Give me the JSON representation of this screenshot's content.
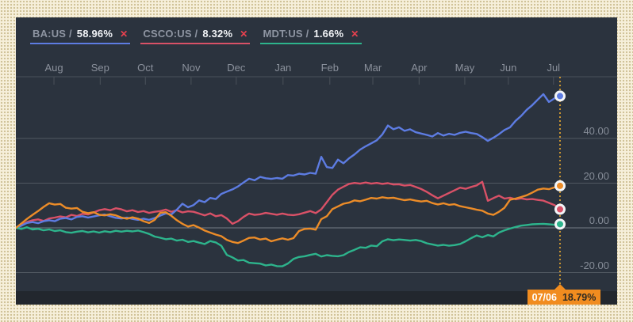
{
  "tooltip": {
    "date": "07/06",
    "value": "18.79%"
  },
  "legend": {
    "items": [
      {
        "id": "ba-us",
        "ticker": "BA:US /",
        "value": "58.96%",
        "close": "✕",
        "color": "#5d7ce2"
      },
      {
        "id": "csco-us",
        "ticker": "CSCO:US /",
        "value": "8.32%",
        "close": "✕",
        "color": "#d95167"
      },
      {
        "id": "mdt-us",
        "ticker": "MDT:US /",
        "value": "1.66%",
        "close": "✕",
        "color": "#2db48c"
      }
    ]
  },
  "colors": {
    "panel_bg": "#2b333e",
    "strip_bg": "#22272e",
    "grid": "#515861",
    "grid_zero": "#767c85",
    "axis": "#4a515a",
    "cursor": "#c79432",
    "dot_ring": "#f3f5f8",
    "tooltip_bg": "#f18c1f",
    "page_bg": "#f6efda"
  },
  "chart_data": {
    "type": "line",
    "title": "",
    "xlabel": "",
    "ylabel": "",
    "grid": "horizontal",
    "legend_position": "top-left",
    "x_axis_position": "top",
    "y_axis_position": "right-inside",
    "ylim": [
      -28.3,
      67.6
    ],
    "y_ticks": [
      {
        "label": "40.00",
        "value": 40
      },
      {
        "label": "20.00",
        "value": 20
      },
      {
        "label": "0.00",
        "value": 0
      },
      {
        "label": "-20.00",
        "value": -20
      }
    ],
    "x_ticks": [
      {
        "label": "Aug",
        "pos": 7.0
      },
      {
        "label": "Sep",
        "pos": 15.5
      },
      {
        "label": "Oct",
        "pos": 23.8
      },
      {
        "label": "Nov",
        "pos": 32.2
      },
      {
        "label": "Dec",
        "pos": 40.5
      },
      {
        "label": "Jan",
        "pos": 49.1
      },
      {
        "label": "Feb",
        "pos": 57.7
      },
      {
        "label": "Mar",
        "pos": 65.6
      },
      {
        "label": "Apr",
        "pos": 74.1
      },
      {
        "label": "May",
        "pos": 82.5
      },
      {
        "label": "Jun",
        "pos": 90.5
      },
      {
        "label": "Jul",
        "pos": 98.8
      }
    ],
    "cursor": {
      "pos": 100,
      "date": "07/06"
    },
    "unit": "percent change",
    "series": [
      {
        "id": "csco-us",
        "name": "CSCO:US",
        "color": "#d95167",
        "end_label": "8.32%",
        "values": [
          0,
          1.2,
          2.6,
          3.4,
          3.8,
          3.1,
          4.2,
          4.6,
          5.1,
          4.7,
          5.8,
          5.3,
          6.3,
          6.0,
          6.9,
          7.9,
          8.4,
          7.9,
          8.8,
          8.3,
          7.4,
          7.9,
          7.1,
          7.5,
          6.7,
          7.2,
          7.5,
          8.2,
          7.2,
          7.9,
          6.9,
          7.4,
          7.2,
          6.4,
          5.6,
          6.5,
          5.2,
          5.7,
          4.2,
          1.8,
          3.0,
          4.9,
          6.4,
          5.8,
          6.1,
          6.7,
          6.3,
          5.9,
          6.4,
          5.9,
          5.7,
          6.1,
          6.8,
          7.5,
          6.6,
          8.3,
          11.5,
          14.8,
          17.1,
          18.4,
          19.7,
          20.1,
          19.8,
          20.3,
          19.8,
          20.1,
          19.7,
          20.0,
          19.4,
          19.5,
          18.9,
          19.2,
          18.3,
          17.4,
          16.1,
          14.6,
          13.2,
          14.4,
          15.6,
          16.8,
          18.0,
          17.5,
          18.3,
          19.0,
          20.6,
          12.1,
          13.3,
          14.4,
          13.1,
          13.5,
          12.8,
          13.2,
          12.7,
          12.9,
          12.5,
          12.2,
          11.2,
          10.2,
          8.32
        ]
      },
      {
        "id": "ba-us",
        "name": "BA:US",
        "color": "#5d7ce2",
        "end_label": "58.96%",
        "values": [
          0,
          1.0,
          2.2,
          2.6,
          2.1,
          3.0,
          3.4,
          3.0,
          4.1,
          4.4,
          3.8,
          4.9,
          5.2,
          4.6,
          5.1,
          5.6,
          6.0,
          5.2,
          4.5,
          4.2,
          4.6,
          4.0,
          3.6,
          4.1,
          3.6,
          4.4,
          5.5,
          6.5,
          6.0,
          8.2,
          10.8,
          9.2,
          10.2,
          12.3,
          11.5,
          13.4,
          12.9,
          15.2,
          16.2,
          17.2,
          18.5,
          20.3,
          22.0,
          21.3,
          22.8,
          22.2,
          21.9,
          22.3,
          22.0,
          23.6,
          23.4,
          24.2,
          23.9,
          24.6,
          24.2,
          31.8,
          27.2,
          26.8,
          30.5,
          28.9,
          31.1,
          32.9,
          35.0,
          36.5,
          37.8,
          39.2,
          41.8,
          45.8,
          44.1,
          45.0,
          43.4,
          44.1,
          42.8,
          42.2,
          41.6,
          40.9,
          42.4,
          41.3,
          42.1,
          41.6,
          42.5,
          43.0,
          42.4,
          42.0,
          40.6,
          38.9,
          40.3,
          41.9,
          43.8,
          45.0,
          47.9,
          50.1,
          52.8,
          54.9,
          57.4,
          59.8,
          56.3,
          57.9,
          58.96
        ]
      },
      {
        "id": "mdt-us",
        "name": "MDT:US",
        "color": "#2db48c",
        "end_label": "1.66%",
        "values": [
          0,
          -0.5,
          0.3,
          -0.7,
          -0.4,
          -1.1,
          -0.7,
          -1.4,
          -1.1,
          -1.9,
          -2.2,
          -1.7,
          -1.4,
          -2.0,
          -1.6,
          -2.1,
          -1.5,
          -1.9,
          -1.3,
          -1.7,
          -1.3,
          -1.6,
          -1.2,
          -1.9,
          -2.7,
          -3.9,
          -4.4,
          -5.1,
          -4.8,
          -5.7,
          -5.3,
          -6.3,
          -5.9,
          -6.6,
          -7.2,
          -5.9,
          -6.5,
          -8.0,
          -12.1,
          -13.2,
          -14.6,
          -14.4,
          -15.6,
          -15.8,
          -16.0,
          -16.8,
          -16.4,
          -17.1,
          -17.2,
          -15.9,
          -13.9,
          -13.0,
          -12.7,
          -12.1,
          -11.6,
          -12.8,
          -12.2,
          -12.5,
          -12.7,
          -12.2,
          -10.8,
          -9.8,
          -8.7,
          -8.9,
          -7.9,
          -8.2,
          -6.0,
          -5.1,
          -5.5,
          -5.2,
          -5.4,
          -5.7,
          -5.4,
          -5.9,
          -6.9,
          -7.4,
          -7.9,
          -7.6,
          -8.0,
          -7.7,
          -7.2,
          -6.0,
          -4.6,
          -3.4,
          -4.2,
          -3.2,
          -3.8,
          -2.1,
          -1.1,
          -0.3,
          0.4,
          1.0,
          1.3,
          1.6,
          1.7,
          1.8,
          1.6,
          1.4,
          1.66
        ]
      },
      {
        "id": "tracked",
        "name": "",
        "color": "#ec8c28",
        "end_label": "18.79%",
        "values": [
          0,
          2.0,
          4.0,
          5.8,
          7.5,
          9.4,
          11.0,
          10.4,
          10.7,
          9.0,
          8.6,
          8.9,
          7.2,
          6.6,
          7.0,
          5.9,
          5.6,
          6.1,
          5.6,
          4.6,
          4.1,
          4.7,
          4.1,
          3.0,
          2.2,
          3.6,
          6.7,
          7.0,
          5.4,
          3.4,
          1.8,
          0.6,
          1.2,
          0.1,
          -1.2,
          -2.1,
          -3.0,
          -3.7,
          -5.4,
          -6.3,
          -6.8,
          -5.7,
          -4.5,
          -4.3,
          -5.2,
          -4.8,
          -6.0,
          -5.3,
          -4.7,
          -5.3,
          -4.6,
          -1.4,
          -0.5,
          -0.3,
          -0.8,
          3.9,
          5.2,
          8.4,
          9.6,
          10.8,
          11.3,
          12.3,
          11.9,
          12.6,
          13.4,
          13.1,
          13.7,
          13.3,
          13.5,
          12.9,
          12.4,
          12.7,
          12.2,
          11.8,
          12.1,
          11.1,
          10.5,
          11.0,
          10.3,
          10.6,
          9.7,
          9.2,
          8.7,
          8.1,
          7.7,
          6.4,
          5.8,
          7.2,
          9.0,
          12.6,
          13.1,
          13.8,
          14.6,
          15.8,
          17.1,
          17.6,
          17.3,
          18.1,
          18.79
        ]
      }
    ]
  }
}
